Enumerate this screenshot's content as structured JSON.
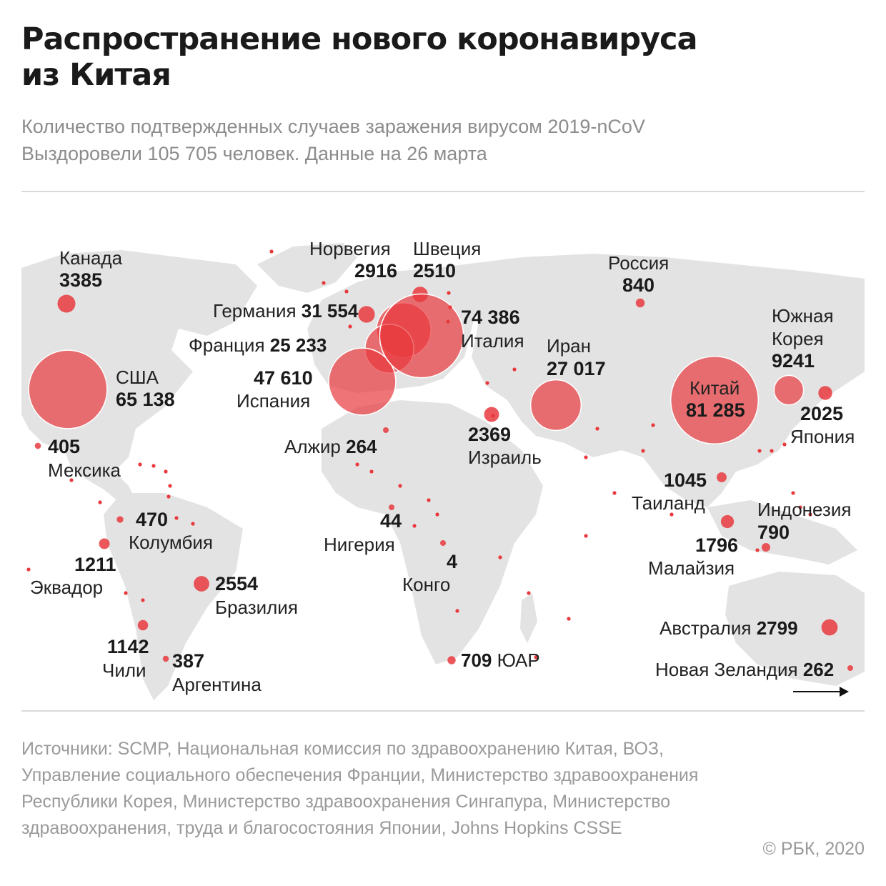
{
  "header": {
    "title_line1": "Распространение нового коронавируса",
    "title_line2": "из Китая",
    "subtitle_line1": "Количество подтвержденных случаев заражения вирусом 2019-nCoV",
    "subtitle_line2": "Выздоровели 105 705 человек. Данные на 26 марта"
  },
  "colors": {
    "bubble": "#e8393d",
    "land": "#e3e3e3",
    "text": "#1a1a1a",
    "muted": "#9a9a9a"
  },
  "countries": [
    {
      "name": "Канада",
      "value": "3385",
      "cases": 3385
    },
    {
      "name": "США",
      "value": "65 138",
      "cases": 65138
    },
    {
      "name": "Мексика",
      "value": "405",
      "cases": 405
    },
    {
      "name": "Колумбия",
      "value": "470",
      "cases": 470
    },
    {
      "name": "Эквадор",
      "value": "1211",
      "cases": 1211
    },
    {
      "name": "Бразилия",
      "value": "2554",
      "cases": 2554
    },
    {
      "name": "Чили",
      "value": "1142",
      "cases": 1142
    },
    {
      "name": "Аргентина",
      "value": "387",
      "cases": 387
    },
    {
      "name": "Норвегия",
      "value": "2916",
      "cases": 2916
    },
    {
      "name": "Швеция",
      "value": "2510",
      "cases": 2510
    },
    {
      "name": "Германия",
      "value": "31 554",
      "cases": 31554
    },
    {
      "name": "Франция",
      "value": "25 233",
      "cases": 25233
    },
    {
      "name": "Испания",
      "value": "47 610",
      "cases": 47610
    },
    {
      "name": "Италия",
      "value": "74 386",
      "cases": 74386
    },
    {
      "name": "Алжир",
      "value": "264",
      "cases": 264
    },
    {
      "name": "Нигерия",
      "value": "44",
      "cases": 44
    },
    {
      "name": "Конго",
      "value": "4",
      "cases": 4
    },
    {
      "name": "ЮАР",
      "value": "709",
      "cases": 709
    },
    {
      "name": "Израиль",
      "value": "2369",
      "cases": 2369
    },
    {
      "name": "Иран",
      "value": "27 017",
      "cases": 27017
    },
    {
      "name": "Россия",
      "value": "840",
      "cases": 840
    },
    {
      "name": "Китай",
      "value": "81 285",
      "cases": 81285
    },
    {
      "name": "Южная Корея",
      "value": "9241",
      "cases": 9241
    },
    {
      "name": "Япония",
      "value": "2025",
      "cases": 2025
    },
    {
      "name": "Таиланд",
      "value": "1045",
      "cases": 1045
    },
    {
      "name": "Малайзия",
      "value": "1796",
      "cases": 1796
    },
    {
      "name": "Индонезия",
      "value": "790",
      "cases": 790
    },
    {
      "name": "Австралия",
      "value": "2799",
      "cases": 2799
    },
    {
      "name": "Новая Зеландия",
      "value": "262",
      "cases": 262
    }
  ],
  "footer": {
    "sources": "Источники: SCMP, Национальная комиссия по здравоохранению Китая, ВОЗ, Управление социального обеспечения Франции, Министерство здравоохранения Республики Корея, Министерство здравоохранения Сингапура, Министерство здравоохранения, труда и благосостояния Японии, Johns Hopkins CSSE",
    "copyright": "© РБК, 2020"
  }
}
